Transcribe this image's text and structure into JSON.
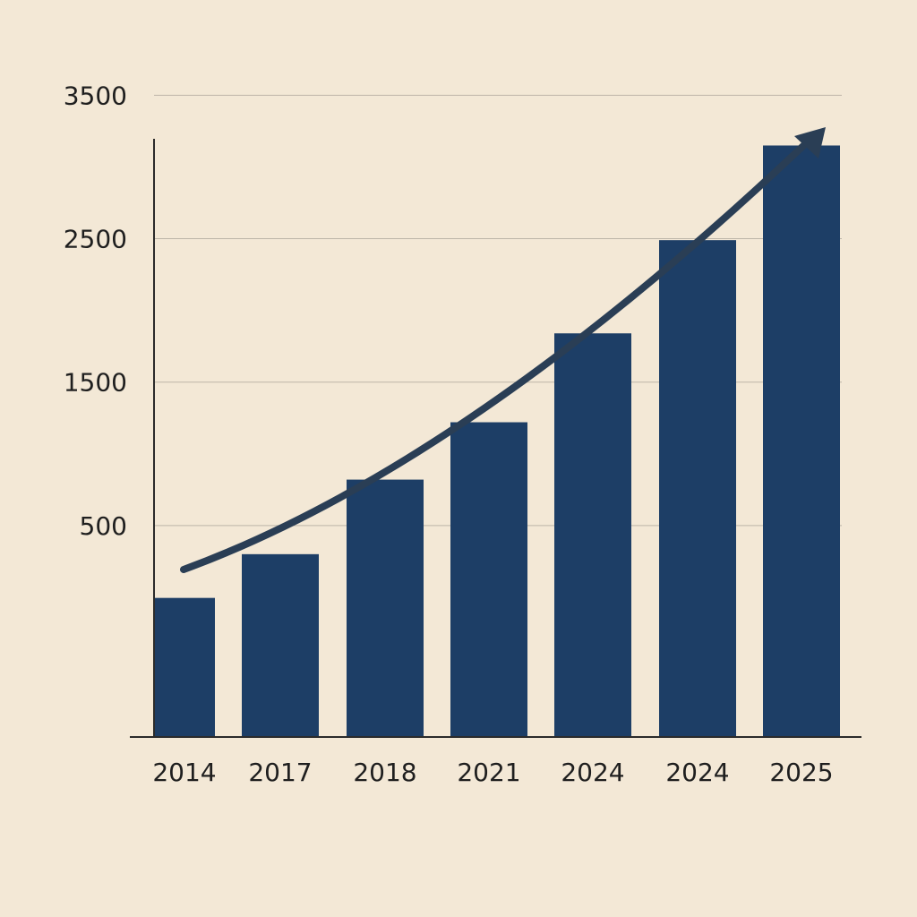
{
  "chart_data": {
    "type": "bar",
    "title": "",
    "xlabel": "",
    "ylabel": "",
    "categories": [
      "2014",
      "2017",
      "2018",
      "2021",
      "2024",
      "2024",
      "2025"
    ],
    "values": [
      -5,
      300,
      820,
      1220,
      1840,
      2490,
      3150
    ],
    "yticks": [
      500,
      1500,
      2500,
      3500
    ],
    "ylim": [
      -975,
      3790
    ],
    "grid": true,
    "trend_arrow": true,
    "colors": {
      "background": "#f3e8d6",
      "bar": "#1d3e66",
      "grid": "#bdb5a8",
      "axis": "#2b2b2b",
      "arrow": "#2a3e55",
      "text": "#1f1f1f"
    }
  }
}
